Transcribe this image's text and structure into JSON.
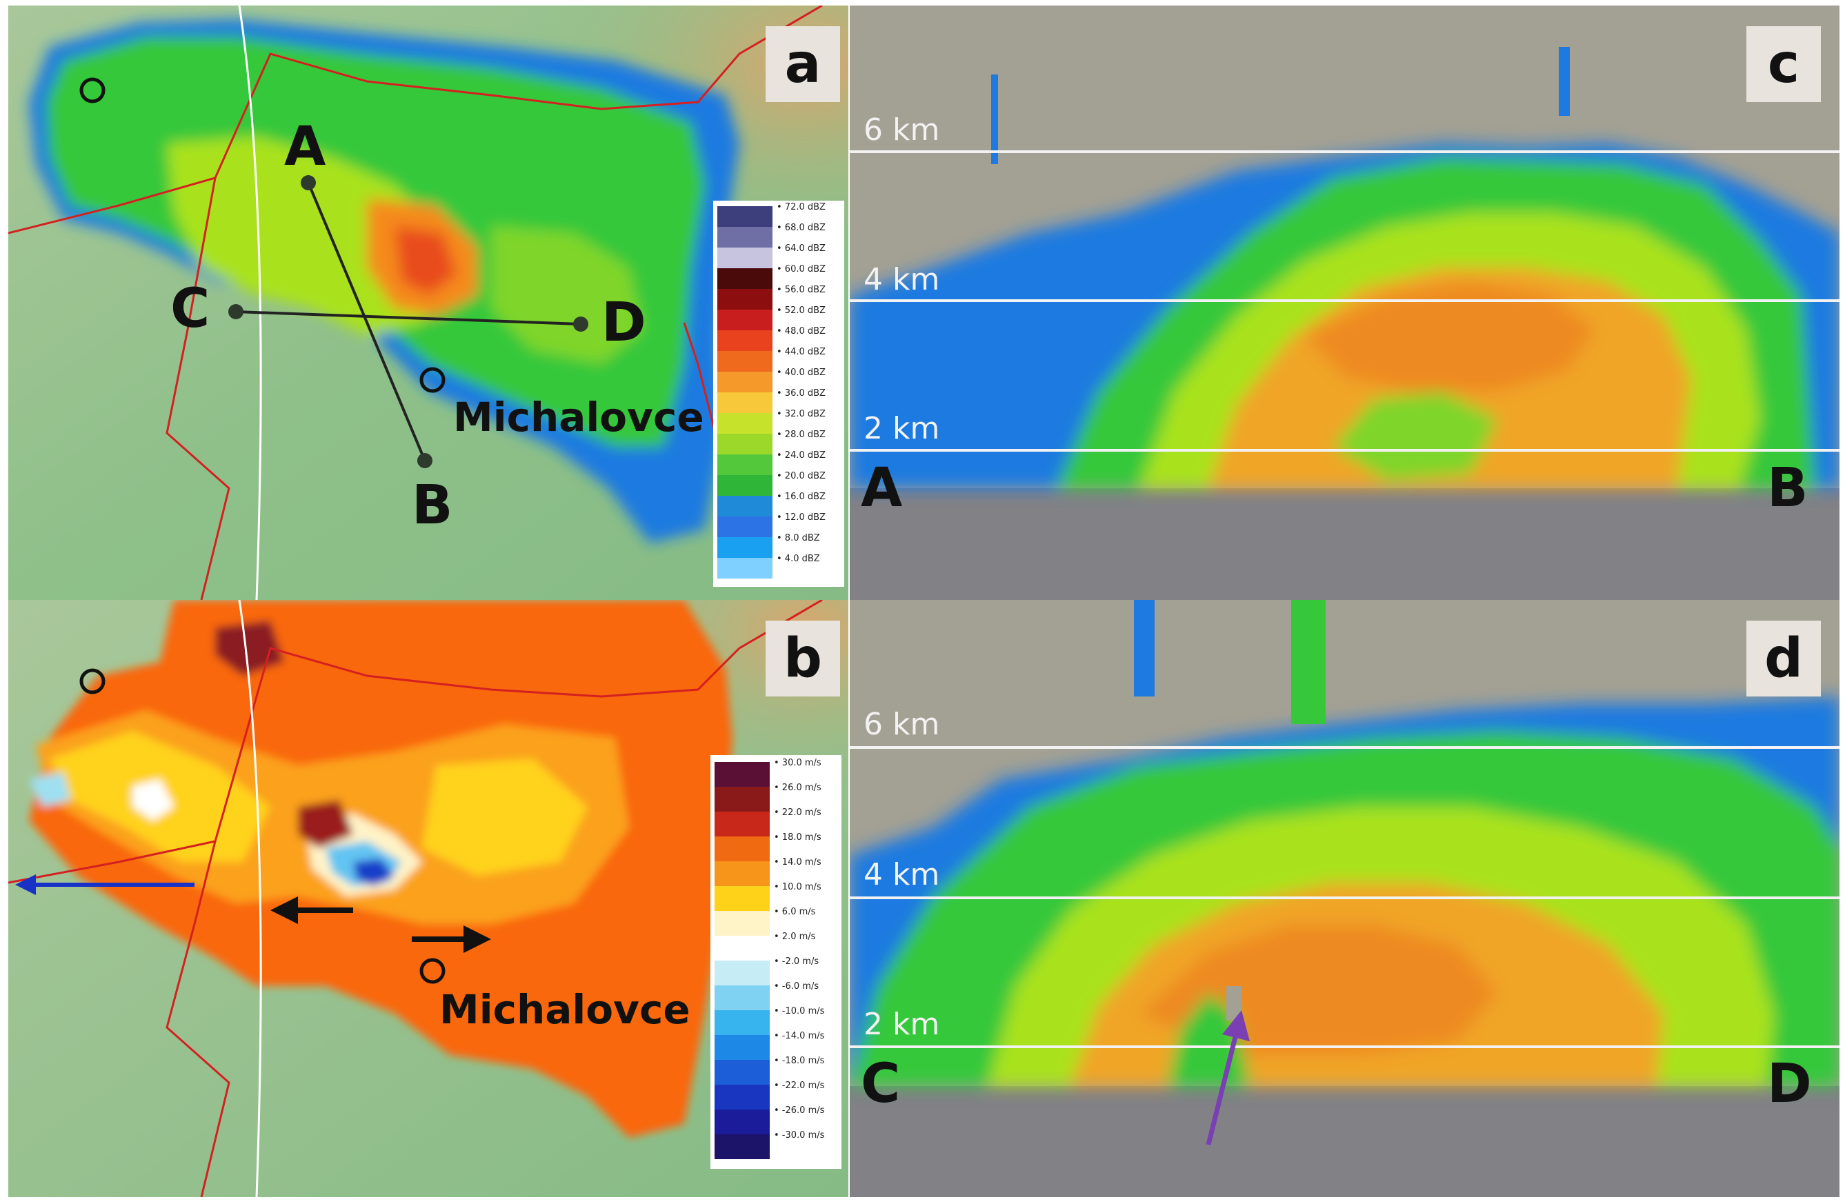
{
  "panels": {
    "a": {
      "label": "a",
      "points": {
        "A": "A",
        "B": "B",
        "C": "C",
        "D": "D"
      },
      "city": "Michalovce"
    },
    "b": {
      "label": "b",
      "city": "Michalovce"
    },
    "c": {
      "label": "c",
      "heights": [
        "6 km",
        "4 km",
        "2 km"
      ],
      "start": "A",
      "end": "B"
    },
    "d": {
      "label": "d",
      "heights": [
        "6 km",
        "4 km",
        "2 km"
      ],
      "start": "C",
      "end": "D"
    }
  },
  "colorbars": {
    "reflectivity": [
      "72.0 dBZ",
      "68.0 dBZ",
      "64.0 dBZ",
      "60.0 dBZ",
      "56.0 dBZ",
      "52.0 dBZ",
      "48.0 dBZ",
      "44.0 dBZ",
      "40.0 dBZ",
      "36.0 dBZ",
      "32.0 dBZ",
      "28.0 dBZ",
      "24.0 dBZ",
      "20.0 dBZ",
      "16.0 dBZ",
      "12.0 dBZ",
      "8.0 dBZ",
      "4.0 dBZ"
    ],
    "velocity": [
      "30.0 m/s",
      "26.0 m/s",
      "22.0 m/s",
      "18.0 m/s",
      "14.0 m/s",
      "10.0 m/s",
      "6.0 m/s",
      "2.0 m/s",
      "-2.0 m/s",
      "-6.0 m/s",
      "-10.0 m/s",
      "-14.0 m/s",
      "-18.0 m/s",
      "-22.0 m/s",
      "-26.0 m/s",
      "-30.0 m/s"
    ]
  },
  "colors": {
    "terrain": "#8fc08a",
    "border": "#d42020",
    "background_gray": "#a3a094",
    "ground_gray": "#818186"
  }
}
